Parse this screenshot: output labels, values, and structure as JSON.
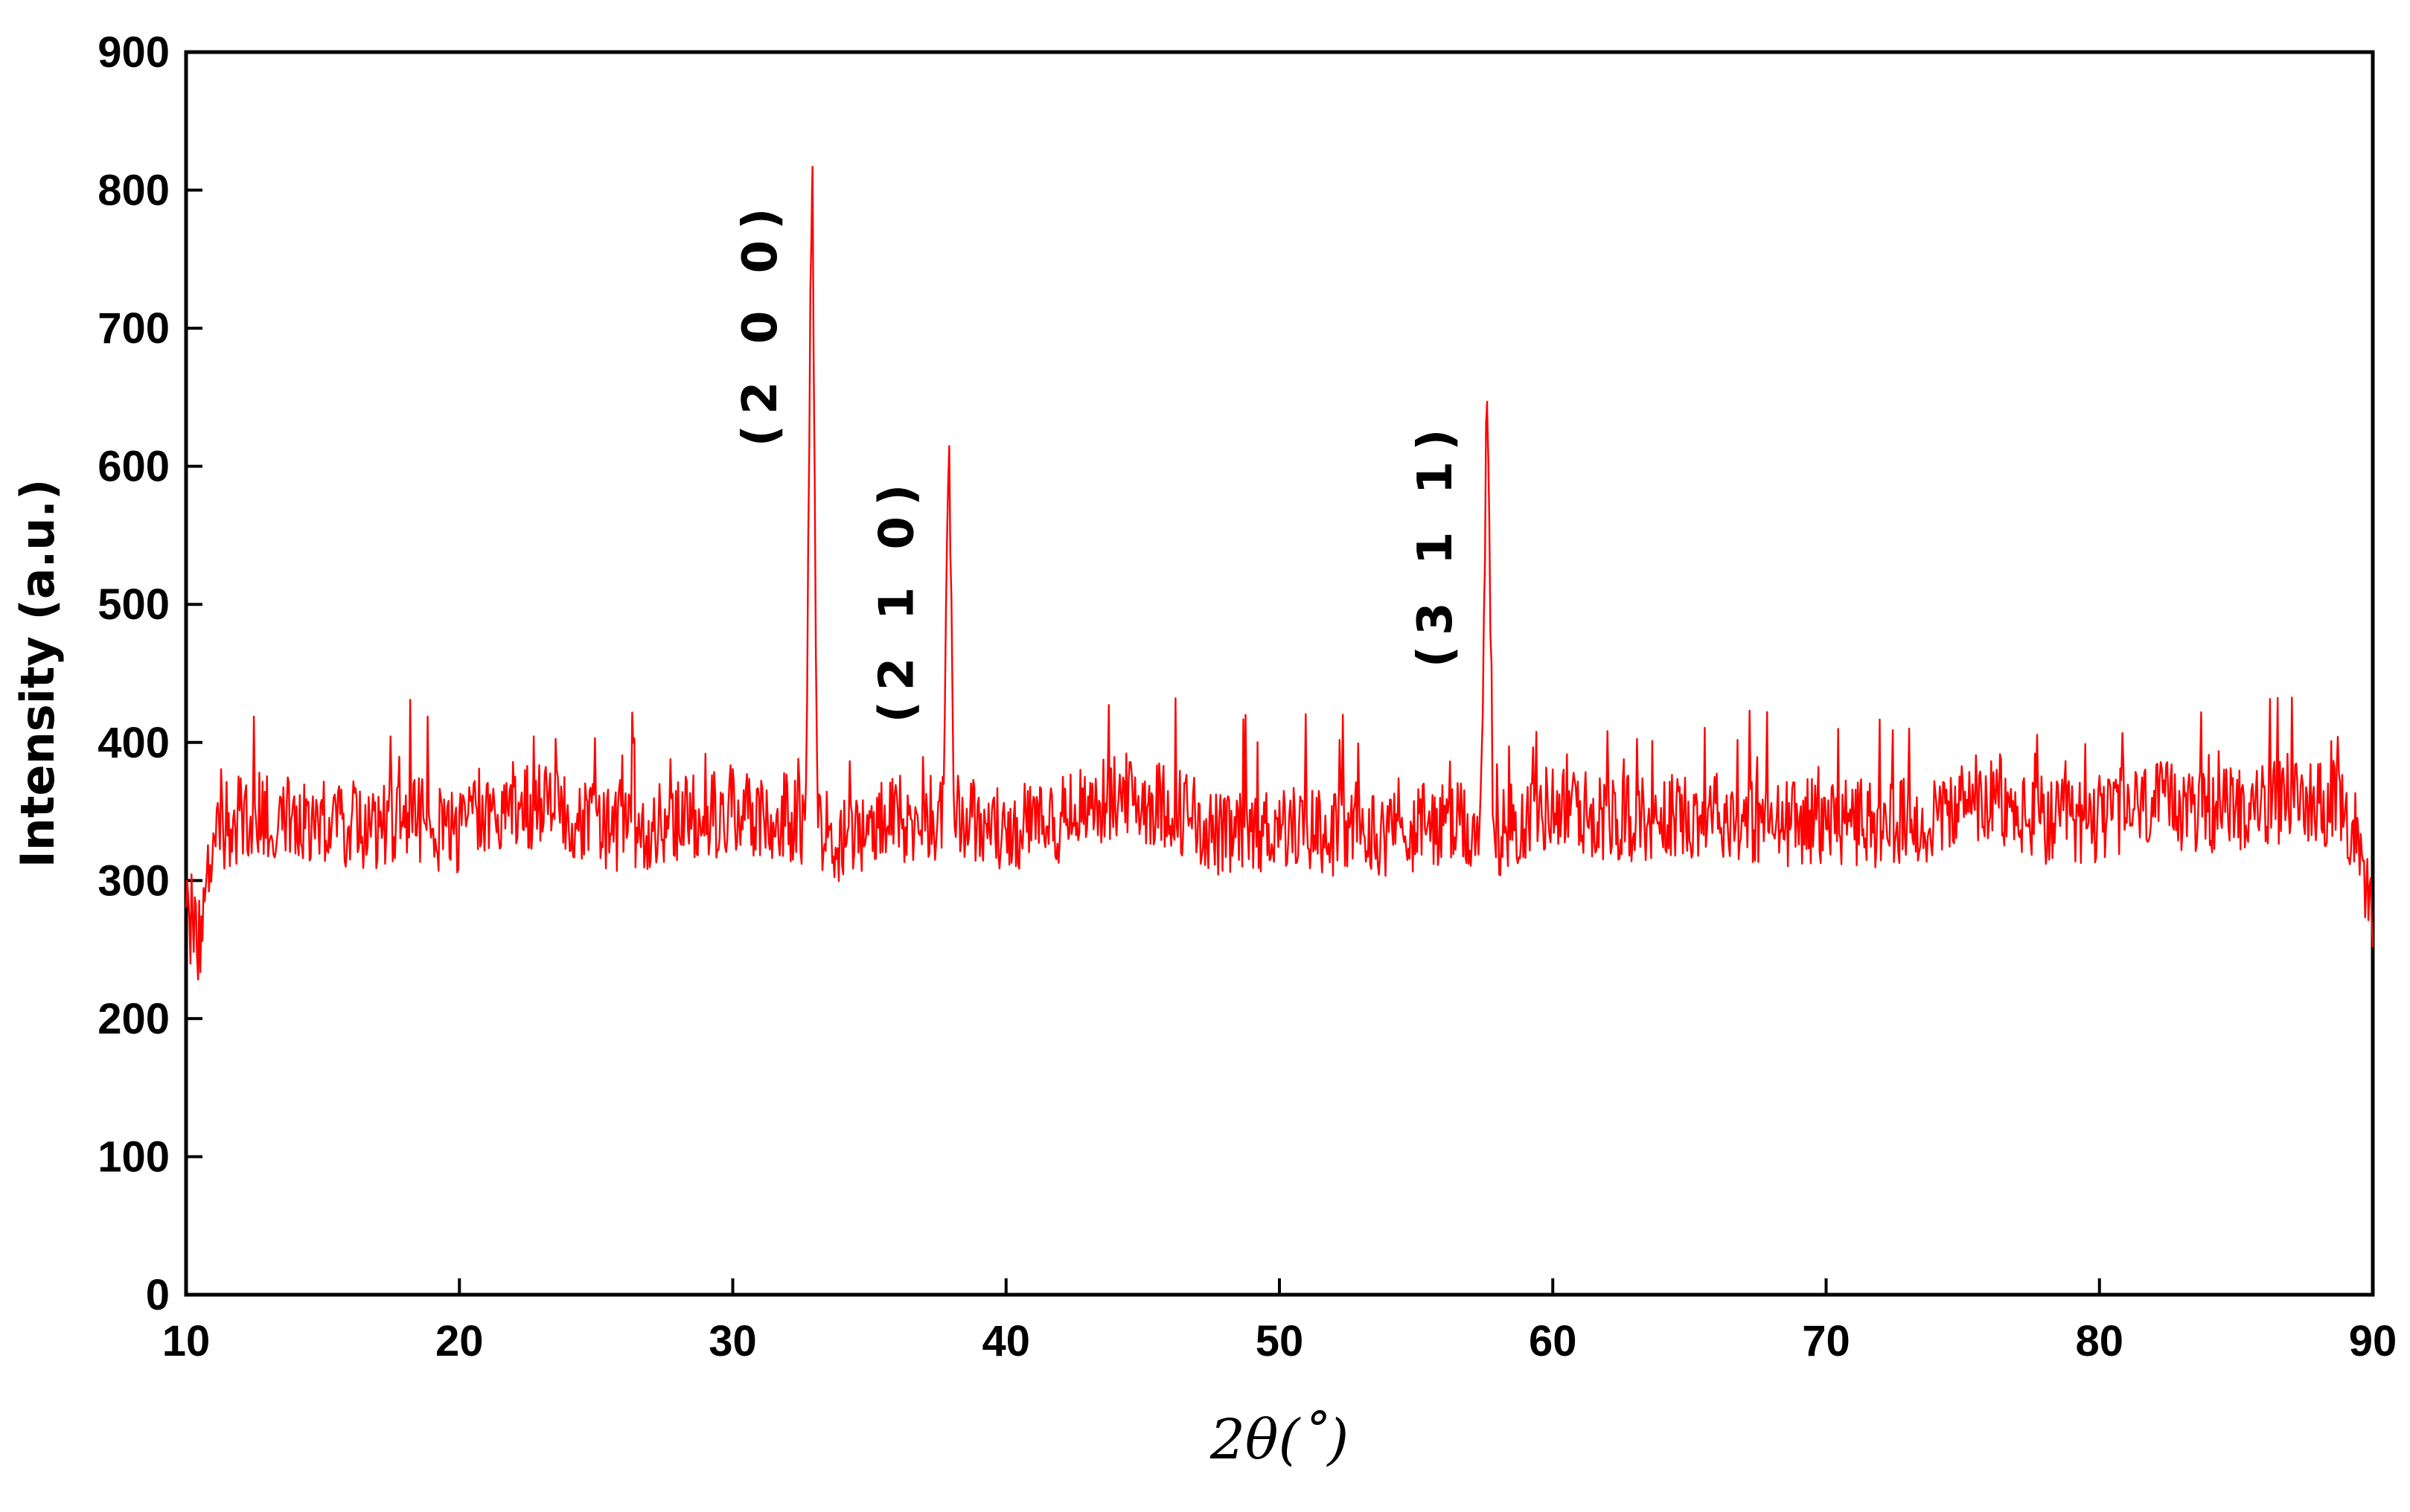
{
  "chart_data": {
    "type": "line",
    "title": "",
    "xlabel": "2θ(˚)",
    "ylabel": "Intensity (a.u.)",
    "xlim": [
      10,
      90
    ],
    "ylim": [
      0,
      900
    ],
    "xticks": [
      "10",
      "20",
      "30",
      "40",
      "50",
      "60",
      "70",
      "80",
      "90"
    ],
    "yticks": [
      "0",
      "100",
      "200",
      "300",
      "400",
      "500",
      "600",
      "700",
      "800",
      "900"
    ],
    "grid": false,
    "legend": "none",
    "line_color": "#ff0000",
    "baseline": {
      "x": [
        10,
        10.5,
        11,
        12,
        14,
        16,
        18,
        20,
        22,
        24,
        26,
        28,
        30,
        32,
        34,
        36,
        38,
        40,
        42,
        44,
        46,
        48,
        50,
        52,
        54,
        56,
        58,
        60,
        62,
        64,
        66,
        68,
        70,
        72,
        74,
        76,
        78,
        80,
        82,
        84,
        86,
        88,
        89.5,
        90
      ],
      "y": [
        275,
        255,
        335,
        345,
        350,
        335,
        345,
        335,
        355,
        350,
        335,
        345,
        350,
        345,
        330,
        345,
        345,
        335,
        345,
        360,
        355,
        330,
        340,
        335,
        335,
        340,
        335,
        355,
        345,
        345,
        350,
        340,
        345,
        340,
        345,
        355,
        340,
        345,
        355,
        350,
        355,
        360,
        335,
        260
      ],
      "noise_amplitude": 40
    },
    "peaks": [
      {
        "label": "(2 0 0)",
        "x": 32.9,
        "y": 800
      },
      {
        "label": "(2 1 0)",
        "x": 37.9,
        "y": 600
      },
      {
        "label": "(3 1 1)",
        "x": 57.6,
        "y": 640
      }
    ]
  }
}
